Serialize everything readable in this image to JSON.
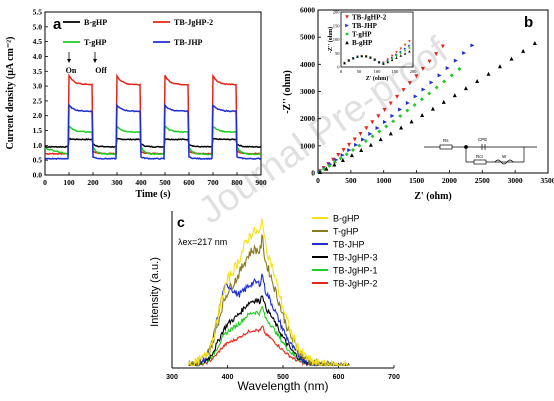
{
  "watermark": "Journal Pre-proof",
  "chart_data": [
    {
      "panel_label": "a",
      "type": "line",
      "xlabel": "Time (s)",
      "ylabel": "Current density (μA cm⁻²)",
      "xlim": [
        0,
        900
      ],
      "ylim": [
        0,
        5.5
      ],
      "xticks": [
        0,
        100,
        200,
        300,
        400,
        500,
        600,
        700,
        800,
        900
      ],
      "yticks": [
        0.0,
        0.5,
        1.0,
        1.5,
        2.0,
        2.5,
        3.0,
        3.5,
        4.0,
        4.5,
        5.0,
        5.5
      ],
      "annotations": [
        {
          "text": "On",
          "x": 100,
          "y": 3.9
        },
        {
          "text": "Off",
          "x": 200,
          "y": 3.9
        }
      ],
      "on_off_cycles": [
        [
          100,
          200
        ],
        [
          300,
          400
        ],
        [
          500,
          600
        ],
        [
          700,
          800
        ]
      ],
      "series": [
        {
          "name": "B-gHP",
          "color": "#000000",
          "baseline": 0.95,
          "peak": 1.22,
          "plateau": 1.2,
          "initial": 0.95
        },
        {
          "name": "TB-JgHP-2",
          "color": "#e3261c",
          "baseline": 0.72,
          "peak": 3.35,
          "plateau": 3.05,
          "initial": 0.72
        },
        {
          "name": "T-gHP",
          "color": "#22cc22",
          "baseline": 0.7,
          "peak": 1.65,
          "plateau": 1.45,
          "initial": 0.9
        },
        {
          "name": "TB-JHP",
          "color": "#1f2fcf",
          "baseline": 0.55,
          "peak": 2.35,
          "plateau": 2.15,
          "initial": 0.55
        }
      ]
    },
    {
      "panel_label": "b",
      "type": "scatter",
      "xlabel": "Z' (ohm)",
      "ylabel": "-Z'' (ohm)",
      "xlim": [
        0,
        3500
      ],
      "ylim": [
        0,
        6000
      ],
      "xticks": [
        0,
        500,
        1000,
        1500,
        2000,
        2500,
        3000,
        3500
      ],
      "yticks": [
        0,
        1000,
        2000,
        3000,
        4000,
        5000,
        6000
      ],
      "series": [
        {
          "name": "TB-JgHP-2",
          "color": "#e3261c",
          "marker": "triangle-down",
          "slope": 2.45
        },
        {
          "name": "TB-JHP",
          "color": "#1f2fcf",
          "marker": "triangle-right",
          "slope": 2.0
        },
        {
          "name": "T-gHP",
          "color": "#22cc22",
          "marker": "diamond",
          "slope": 1.78
        },
        {
          "name": "B-gHP",
          "color": "#000000",
          "marker": "triangle-up",
          "slope": 1.45
        }
      ],
      "inset": {
        "xlabel": "Z' (ohm)",
        "ylabel": "-Z'' (ohm)",
        "xlim": [
          0,
          200
        ],
        "ylim": [
          0,
          200
        ],
        "xticks": [
          0,
          50,
          100,
          150,
          200
        ],
        "yticks": [
          0,
          50,
          100,
          150,
          200
        ]
      },
      "circuit_labels": [
        "Rs",
        "CPE",
        "Rct",
        "W"
      ]
    },
    {
      "panel_label": "c",
      "type": "line",
      "xlabel": "Wavelength (nm)",
      "ylabel": "Intensity (a.u.)",
      "xlim": [
        300,
        700
      ],
      "xticks": [
        300,
        400,
        500,
        600,
        700
      ],
      "annotation": "λex=217 nm",
      "series": [
        {
          "name": "B-gHP",
          "color": "#f5e21a",
          "amplitude": 0.9
        },
        {
          "name": "T-gHP",
          "color": "#8a7a1e",
          "amplitude": 0.78
        },
        {
          "name": "TB-JHP",
          "color": "#1f2fcf",
          "amplitude": 0.56
        },
        {
          "name": "TB-JgHP-3",
          "color": "#000000",
          "amplitude": 0.44
        },
        {
          "name": "TB-JgHP-1",
          "color": "#22cc22",
          "amplitude": 0.36
        },
        {
          "name": "TB-JgHP-2",
          "color": "#e3261c",
          "amplitude": 0.24
        }
      ]
    }
  ]
}
